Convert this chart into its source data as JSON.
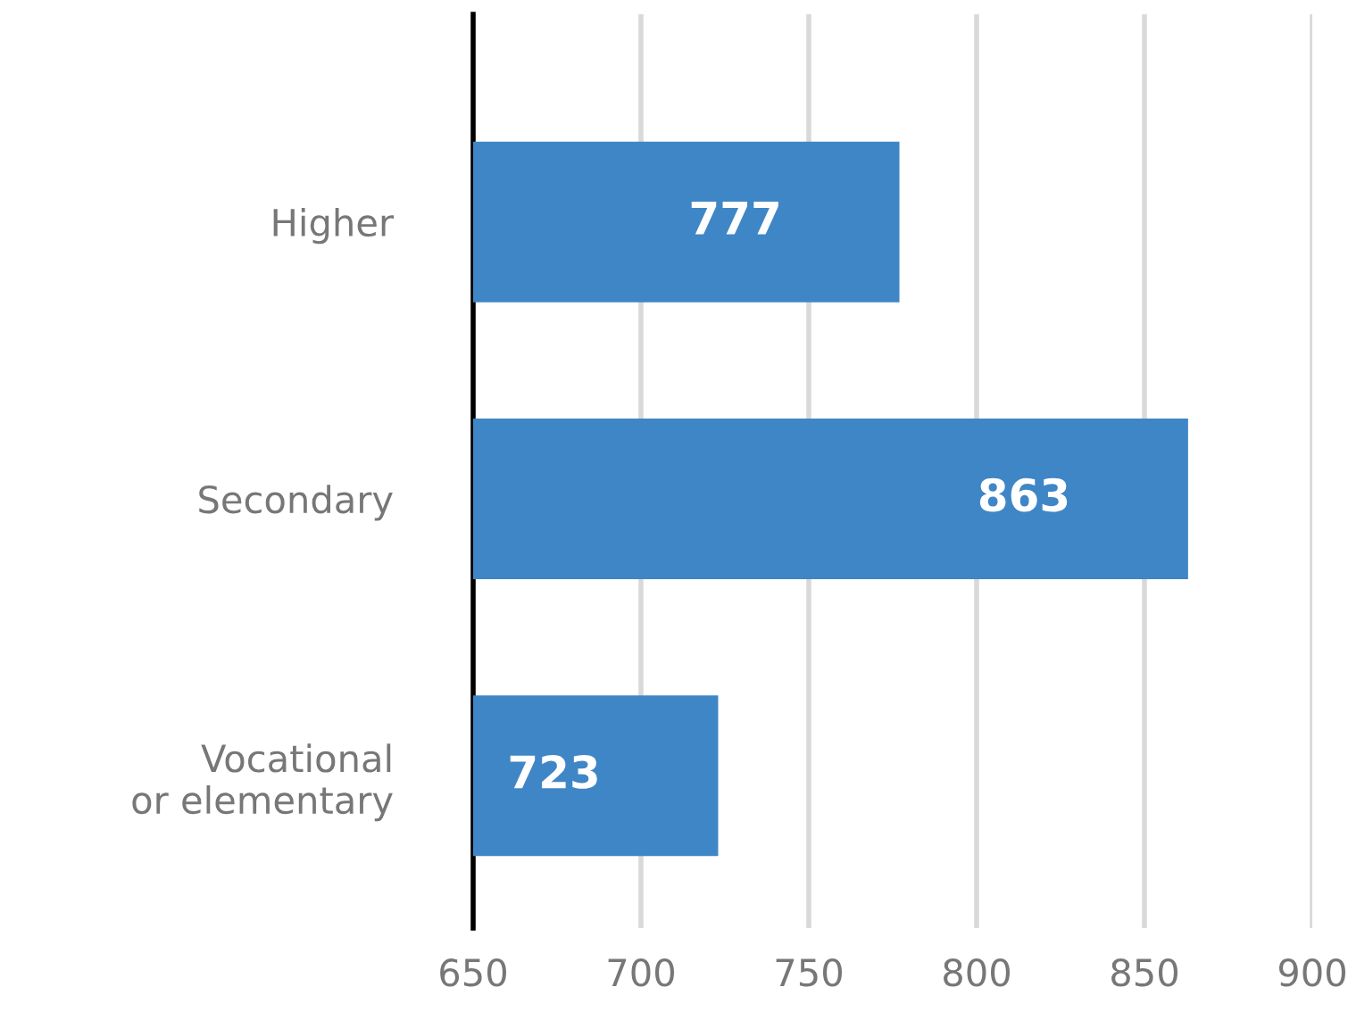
{
  "chart_data": {
    "type": "bar",
    "orientation": "horizontal",
    "categories": [
      "Higher",
      "Secondary",
      "Vocational\nor elementary"
    ],
    "values": [
      777,
      863,
      723
    ],
    "color": "#3f86c6",
    "xlim": [
      650,
      900
    ],
    "xticks": [
      650,
      700,
      750,
      800,
      850,
      900
    ],
    "grid": "x",
    "data_labels": true,
    "legend": false
  }
}
